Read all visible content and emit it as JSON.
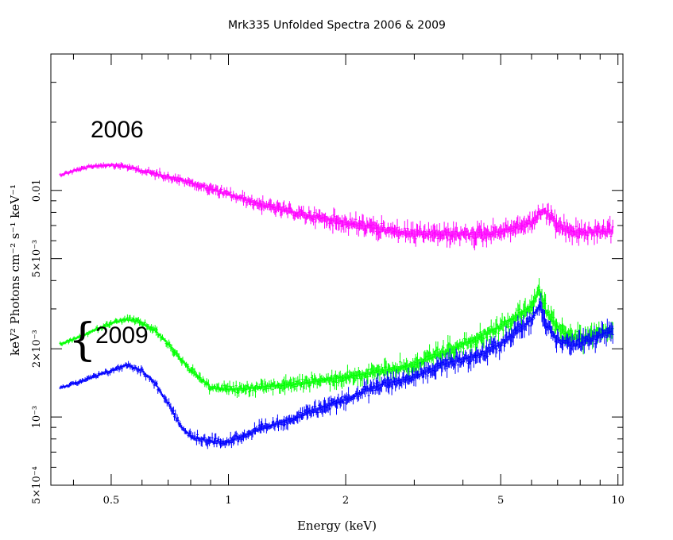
{
  "chart_data": {
    "type": "line",
    "title": "Mrk335 Unfolded Spectra 2006 & 2009",
    "xlabel": "Energy (keV)",
    "ylabel": "keV² Photons cm⁻² s⁻¹ keV⁻¹",
    "xscale": "log",
    "yscale": "log",
    "xlim": [
      0.35,
      10.3
    ],
    "ylim": [
      0.0005,
      0.04
    ],
    "grid": false,
    "x_ticks": [
      {
        "value": 0.5,
        "label": "0.5"
      },
      {
        "value": 1,
        "label": "1"
      },
      {
        "value": 2,
        "label": "2"
      },
      {
        "value": 5,
        "label": "5"
      },
      {
        "value": 10,
        "label": "10"
      }
    ],
    "y_ticks": [
      {
        "value": 0.0005,
        "label": "5×10⁻⁴"
      },
      {
        "value": 0.001,
        "label": "10⁻³"
      },
      {
        "value": 0.002,
        "label": "2×10⁻³"
      },
      {
        "value": 0.005,
        "label": "5×10⁻³"
      },
      {
        "value": 0.01,
        "label": "0.01"
      }
    ],
    "annotations": [
      {
        "text": "2006",
        "x": 0.4,
        "y": 0.0106
      },
      {
        "text": "2009",
        "x": 0.39,
        "y": 0.00195
      }
    ],
    "series": [
      {
        "color": "#ff00ff",
        "x": [
          0.37,
          0.4,
          0.45,
          0.5,
          0.55,
          0.6,
          0.7,
          0.8,
          1.0,
          1.2,
          1.5,
          2.0,
          2.5,
          3.0,
          3.5,
          4.0,
          4.5,
          5.0,
          5.5,
          6.0,
          6.4,
          6.8,
          7.0,
          7.5,
          8.0,
          9.0,
          9.7
        ],
        "y": [
          0.0117,
          0.0122,
          0.0128,
          0.013,
          0.0127,
          0.0122,
          0.0115,
          0.0108,
          0.0096,
          0.0087,
          0.0079,
          0.0072,
          0.0067,
          0.0064,
          0.0064,
          0.0064,
          0.0064,
          0.0066,
          0.0069,
          0.0072,
          0.0082,
          0.0075,
          0.007,
          0.0066,
          0.0065,
          0.0066,
          0.0066
        ]
      },
      {
        "color": "#00ff00",
        "x": [
          0.37,
          0.4,
          0.45,
          0.5,
          0.55,
          0.6,
          0.65,
          0.7,
          0.8,
          0.9,
          1.0,
          1.2,
          1.5,
          2.0,
          2.5,
          3.0,
          3.5,
          4.0,
          4.5,
          5.0,
          5.5,
          6.0,
          6.3,
          6.6,
          7.0,
          7.5,
          8.0,
          8.5,
          9.0,
          9.7
        ],
        "y": [
          0.0021,
          0.0022,
          0.0024,
          0.0026,
          0.0027,
          0.0026,
          0.0024,
          0.0021,
          0.0016,
          0.00135,
          0.00132,
          0.00135,
          0.0014,
          0.0015,
          0.0016,
          0.0017,
          0.0019,
          0.0021,
          0.0023,
          0.0025,
          0.0028,
          0.0031,
          0.0036,
          0.0028,
          0.0025,
          0.0023,
          0.0022,
          0.0023,
          0.0024,
          0.0024
        ]
      },
      {
        "color": "#0000ff",
        "x": [
          0.37,
          0.4,
          0.45,
          0.5,
          0.55,
          0.6,
          0.65,
          0.7,
          0.75,
          0.8,
          0.9,
          1.0,
          1.2,
          1.5,
          2.0,
          2.5,
          3.0,
          3.5,
          4.0,
          4.5,
          5.0,
          5.5,
          6.0,
          6.3,
          6.6,
          7.0,
          7.5,
          8.0,
          8.5,
          9.0,
          9.7
        ],
        "y": [
          0.00135,
          0.0014,
          0.0015,
          0.0016,
          0.0017,
          0.0016,
          0.0014,
          0.00115,
          0.00092,
          0.00082,
          0.00078,
          0.00078,
          0.00088,
          0.001,
          0.0012,
          0.0014,
          0.0015,
          0.0017,
          0.0018,
          0.0019,
          0.0021,
          0.0024,
          0.0027,
          0.0031,
          0.0025,
          0.0022,
          0.0021,
          0.0021,
          0.0022,
          0.0023,
          0.0024
        ]
      }
    ]
  }
}
